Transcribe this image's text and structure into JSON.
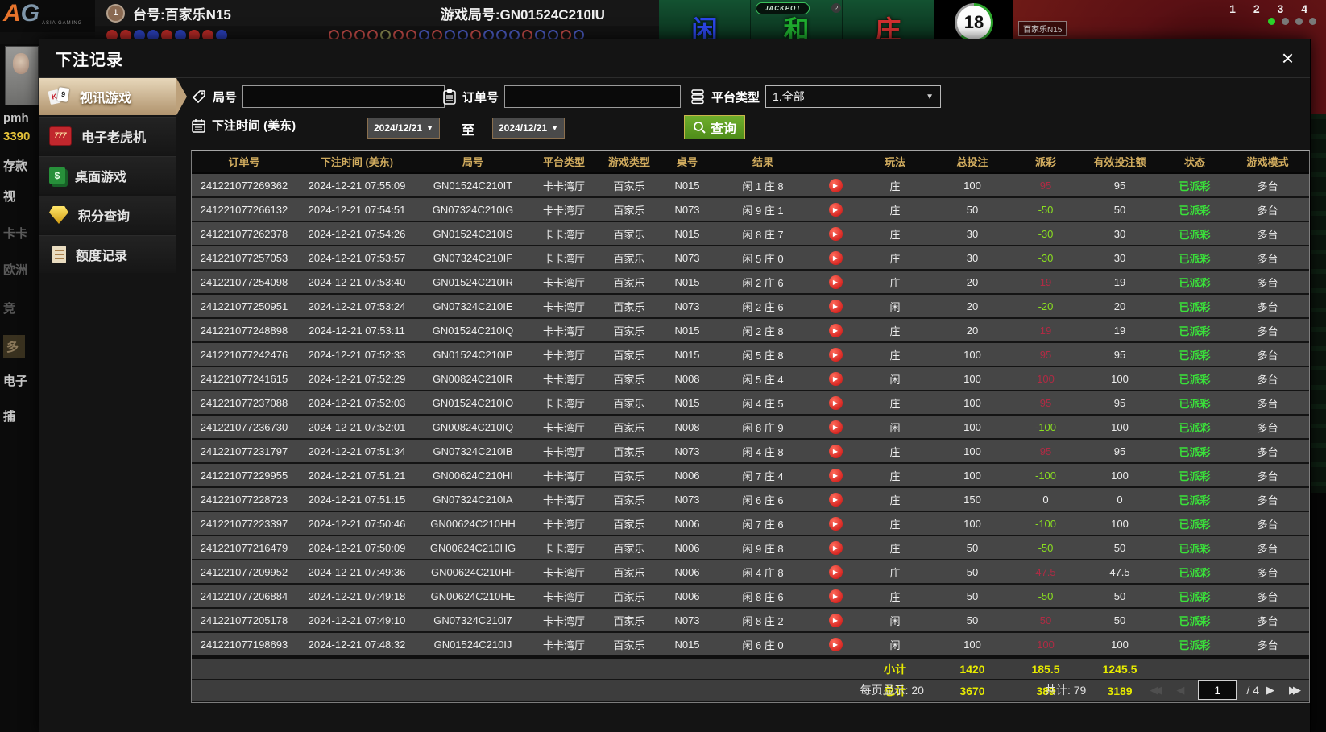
{
  "colors": {
    "header_gold": "#d0ab5e",
    "payout_positive": "#b02b44",
    "payout_negative": "#8adf20",
    "status_green": "#3ae23a",
    "totals_yellow": "#e6ea00",
    "selected_tab": "#c9ad85",
    "search_green": "#5f9e23"
  },
  "icons": {
    "dropdown_arrow": "▼",
    "play": "▶",
    "prev": "◀",
    "next": "▶",
    "prev_dbl": "◀◀",
    "next_dbl": "▶▶",
    "close": "×"
  },
  "background": {
    "logo_a": "A",
    "logo_g": "G",
    "logo_sub": "ASIA GAMING",
    "table_badge": "1",
    "table_label": "台号:百家乐N15",
    "round_label": "游戏局号:GN01524C210IU",
    "jackpot": "JACKPOT",
    "jackpot_help": "?",
    "bet_player": "闲",
    "bet_tie": "和",
    "bet_banker": "庄",
    "timer": "18",
    "video_label": "百家乐N15",
    "seat_numbers": "1 2 3 4",
    "left_items": [
      {
        "label": "pmh",
        "cls": "lc-white"
      },
      {
        "label": "3390",
        "cls": "lc-yellow"
      },
      {
        "label": "存款",
        "cls": "lc-white"
      },
      {
        "label": "视",
        "cls": "lc-white"
      },
      {
        "label": "卡卡",
        "cls": "lc-gray"
      },
      {
        "label": "欧洲",
        "cls": "lc-gray"
      },
      {
        "label": "竞",
        "cls": "lc-gray"
      },
      {
        "label": "多",
        "cls": "lc-hi"
      },
      {
        "label": "电子",
        "cls": "lc-white"
      },
      {
        "label": "捕",
        "cls": "lc-white"
      }
    ],
    "beads_solid": [
      "r",
      "r",
      "b",
      "b",
      "r",
      "b",
      "r",
      "r",
      "b"
    ],
    "beads_ring": [
      "r",
      "r",
      "r",
      "r",
      "g",
      "r",
      "r",
      "b",
      "r",
      "b",
      "b",
      "r",
      "b",
      "b",
      "b",
      "r",
      "b",
      "b",
      "r",
      "b"
    ]
  },
  "modal": {
    "title": "下注记录",
    "sidebar": [
      {
        "key": "video-games",
        "label": "视讯游戏",
        "icon": "cards",
        "selected": true
      },
      {
        "key": "slots",
        "label": "电子老虎机",
        "icon": "slot",
        "selected": false
      },
      {
        "key": "table-games",
        "label": "桌面游戏",
        "icon": "tablecards",
        "selected": false
      },
      {
        "key": "points-query",
        "label": "积分查询",
        "icon": "gem",
        "selected": false
      },
      {
        "key": "quota-records",
        "label": "额度记录",
        "icon": "doc",
        "selected": false
      }
    ],
    "filters": {
      "round_label": "局号",
      "round_value": "",
      "order_label": "订单号",
      "order_value": "",
      "platform_label": "平台类型",
      "platform_value": "1.全部",
      "time_label": "下注时间 (美东)",
      "date_from": "2024/12/21",
      "to_sep": "至",
      "date_to": "2024/12/21",
      "search_label": "查询"
    },
    "table": {
      "headers": [
        "订单号",
        "下注时间 (美东)",
        "局号",
        "平台类型",
        "游戏类型",
        "桌号",
        "结果",
        "",
        "玩法",
        "总投注",
        "派彩",
        "有效投注额",
        "状态",
        "游戏模式"
      ],
      "rows": [
        {
          "order": "241221077269362",
          "time": "2024-12-21 07:55:09",
          "round": "GN01524C210IT",
          "platform": "卡卡湾厅",
          "game": "百家乐",
          "table": "N015",
          "result": "闲 1 庄 8",
          "play": "庄",
          "bet": "100",
          "payout": "95",
          "p": "pos",
          "valid": "95",
          "status": "已派彩",
          "mode": "多台"
        },
        {
          "order": "241221077266132",
          "time": "2024-12-21 07:54:51",
          "round": "GN07324C210IG",
          "platform": "卡卡湾厅",
          "game": "百家乐",
          "table": "N073",
          "result": "闲 9 庄 1",
          "play": "庄",
          "bet": "50",
          "payout": "-50",
          "p": "neg",
          "valid": "50",
          "status": "已派彩",
          "mode": "多台"
        },
        {
          "order": "241221077262378",
          "time": "2024-12-21 07:54:26",
          "round": "GN01524C210IS",
          "platform": "卡卡湾厅",
          "game": "百家乐",
          "table": "N015",
          "result": "闲 8 庄 7",
          "play": "庄",
          "bet": "30",
          "payout": "-30",
          "p": "neg",
          "valid": "30",
          "status": "已派彩",
          "mode": "多台"
        },
        {
          "order": "241221077257053",
          "time": "2024-12-21 07:53:57",
          "round": "GN07324C210IF",
          "platform": "卡卡湾厅",
          "game": "百家乐",
          "table": "N073",
          "result": "闲 5 庄 0",
          "play": "庄",
          "bet": "30",
          "payout": "-30",
          "p": "neg",
          "valid": "30",
          "status": "已派彩",
          "mode": "多台"
        },
        {
          "order": "241221077254098",
          "time": "2024-12-21 07:53:40",
          "round": "GN01524C210IR",
          "platform": "卡卡湾厅",
          "game": "百家乐",
          "table": "N015",
          "result": "闲 2 庄 6",
          "play": "庄",
          "bet": "20",
          "payout": "19",
          "p": "pos",
          "valid": "19",
          "status": "已派彩",
          "mode": "多台"
        },
        {
          "order": "241221077250951",
          "time": "2024-12-21 07:53:24",
          "round": "GN07324C210IE",
          "platform": "卡卡湾厅",
          "game": "百家乐",
          "table": "N073",
          "result": "闲 2 庄 6",
          "play": "闲",
          "bet": "20",
          "payout": "-20",
          "p": "neg",
          "valid": "20",
          "status": "已派彩",
          "mode": "多台"
        },
        {
          "order": "241221077248898",
          "time": "2024-12-21 07:53:11",
          "round": "GN01524C210IQ",
          "platform": "卡卡湾厅",
          "game": "百家乐",
          "table": "N015",
          "result": "闲 2 庄 8",
          "play": "庄",
          "bet": "20",
          "payout": "19",
          "p": "pos",
          "valid": "19",
          "status": "已派彩",
          "mode": "多台"
        },
        {
          "order": "241221077242476",
          "time": "2024-12-21 07:52:33",
          "round": "GN01524C210IP",
          "platform": "卡卡湾厅",
          "game": "百家乐",
          "table": "N015",
          "result": "闲 5 庄 8",
          "play": "庄",
          "bet": "100",
          "payout": "95",
          "p": "pos",
          "valid": "95",
          "status": "已派彩",
          "mode": "多台"
        },
        {
          "order": "241221077241615",
          "time": "2024-12-21 07:52:29",
          "round": "GN00824C210IR",
          "platform": "卡卡湾厅",
          "game": "百家乐",
          "table": "N008",
          "result": "闲 5 庄 4",
          "play": "闲",
          "bet": "100",
          "payout": "100",
          "p": "pos",
          "valid": "100",
          "status": "已派彩",
          "mode": "多台"
        },
        {
          "order": "241221077237088",
          "time": "2024-12-21 07:52:03",
          "round": "GN01524C210IO",
          "platform": "卡卡湾厅",
          "game": "百家乐",
          "table": "N015",
          "result": "闲 4 庄 5",
          "play": "庄",
          "bet": "100",
          "payout": "95",
          "p": "pos",
          "valid": "95",
          "status": "已派彩",
          "mode": "多台"
        },
        {
          "order": "241221077236730",
          "time": "2024-12-21 07:52:01",
          "round": "GN00824C210IQ",
          "platform": "卡卡湾厅",
          "game": "百家乐",
          "table": "N008",
          "result": "闲 8 庄 9",
          "play": "闲",
          "bet": "100",
          "payout": "-100",
          "p": "neg",
          "valid": "100",
          "status": "已派彩",
          "mode": "多台"
        },
        {
          "order": "241221077231797",
          "time": "2024-12-21 07:51:34",
          "round": "GN07324C210IB",
          "platform": "卡卡湾厅",
          "game": "百家乐",
          "table": "N073",
          "result": "闲 4 庄 8",
          "play": "庄",
          "bet": "100",
          "payout": "95",
          "p": "pos",
          "valid": "95",
          "status": "已派彩",
          "mode": "多台"
        },
        {
          "order": "241221077229955",
          "time": "2024-12-21 07:51:21",
          "round": "GN00624C210HI",
          "platform": "卡卡湾厅",
          "game": "百家乐",
          "table": "N006",
          "result": "闲 7 庄 4",
          "play": "庄",
          "bet": "100",
          "payout": "-100",
          "p": "neg",
          "valid": "100",
          "status": "已派彩",
          "mode": "多台"
        },
        {
          "order": "241221077228723",
          "time": "2024-12-21 07:51:15",
          "round": "GN07324C210IA",
          "platform": "卡卡湾厅",
          "game": "百家乐",
          "table": "N073",
          "result": "闲 6 庄 6",
          "play": "庄",
          "bet": "150",
          "payout": "0",
          "p": "zero",
          "valid": "0",
          "status": "已派彩",
          "mode": "多台"
        },
        {
          "order": "241221077223397",
          "time": "2024-12-21 07:50:46",
          "round": "GN00624C210HH",
          "platform": "卡卡湾厅",
          "game": "百家乐",
          "table": "N006",
          "result": "闲 7 庄 6",
          "play": "庄",
          "bet": "100",
          "payout": "-100",
          "p": "neg",
          "valid": "100",
          "status": "已派彩",
          "mode": "多台"
        },
        {
          "order": "241221077216479",
          "time": "2024-12-21 07:50:09",
          "round": "GN00624C210HG",
          "platform": "卡卡湾厅",
          "game": "百家乐",
          "table": "N006",
          "result": "闲 9 庄 8",
          "play": "庄",
          "bet": "50",
          "payout": "-50",
          "p": "neg",
          "valid": "50",
          "status": "已派彩",
          "mode": "多台"
        },
        {
          "order": "241221077209952",
          "time": "2024-12-21 07:49:36",
          "round": "GN00624C210HF",
          "platform": "卡卡湾厅",
          "game": "百家乐",
          "table": "N006",
          "result": "闲 4 庄 8",
          "play": "庄",
          "bet": "50",
          "payout": "47.5",
          "p": "pos",
          "valid": "47.5",
          "status": "已派彩",
          "mode": "多台"
        },
        {
          "order": "241221077206884",
          "time": "2024-12-21 07:49:18",
          "round": "GN00624C210HE",
          "platform": "卡卡湾厅",
          "game": "百家乐",
          "table": "N006",
          "result": "闲 8 庄 6",
          "play": "庄",
          "bet": "50",
          "payout": "-50",
          "p": "neg",
          "valid": "50",
          "status": "已派彩",
          "mode": "多台"
        },
        {
          "order": "241221077205178",
          "time": "2024-12-21 07:49:10",
          "round": "GN07324C210I7",
          "platform": "卡卡湾厅",
          "game": "百家乐",
          "table": "N073",
          "result": "闲 8 庄 2",
          "play": "闲",
          "bet": "50",
          "payout": "50",
          "p": "pos",
          "valid": "50",
          "status": "已派彩",
          "mode": "多台"
        },
        {
          "order": "241221077198693",
          "time": "2024-12-21 07:48:32",
          "round": "GN01524C210IJ",
          "platform": "卡卡湾厅",
          "game": "百家乐",
          "table": "N015",
          "result": "闲 6 庄 0",
          "play": "闲",
          "bet": "100",
          "payout": "100",
          "p": "pos",
          "valid": "100",
          "status": "已派彩",
          "mode": "多台"
        }
      ],
      "subtotal": {
        "label": "小计",
        "bet": "1420",
        "payout": "185.5",
        "valid": "1245.5"
      },
      "total": {
        "label": "总计",
        "bet": "3670",
        "payout": "389",
        "valid": "3189"
      }
    },
    "pagination": {
      "per_page": "每页显示: 20",
      "total_count": "共计: 79",
      "page": "1",
      "slash": "/",
      "pages": "4"
    }
  }
}
